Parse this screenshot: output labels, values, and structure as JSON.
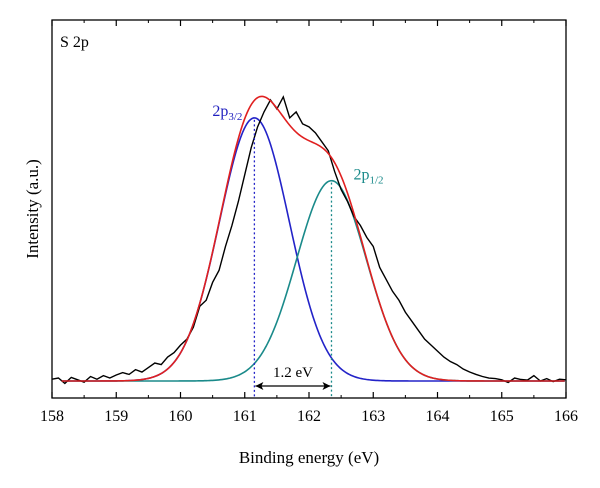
{
  "chart_data": {
    "type": "line",
    "panel_label": "S 2p",
    "xlabel": "Binding energy (eV)",
    "ylabel": "Intensity (a.u.)",
    "xlim": [
      158,
      166
    ],
    "x_ticks": [
      "158",
      "159",
      "160",
      "161",
      "162",
      "163",
      "164",
      "165",
      "166"
    ],
    "grid": false,
    "peak_labels": [
      {
        "base": "2p",
        "sub": "3/2",
        "color": "#1f1fbf"
      },
      {
        "base": "2p",
        "sub": "1/2",
        "color": "#1a8a8a"
      }
    ],
    "splitting_label": "1.2 eV",
    "peaks": [
      {
        "name": "2p3/2",
        "center": 161.15,
        "amplitude": 0.88,
        "fwhm": 1.28,
        "color": "#2323c8"
      },
      {
        "name": "2p1/2",
        "center": 162.35,
        "amplitude": 0.67,
        "fwhm": 1.28,
        "color": "#1a8a8a"
      }
    ],
    "envelope_color": "#e02020",
    "raw_color": "#000000",
    "raw_data": [
      [
        158.0,
        0.006
      ],
      [
        158.1,
        0.01
      ],
      [
        158.2,
        -0.008
      ],
      [
        158.3,
        0.012
      ],
      [
        158.4,
        0.004
      ],
      [
        158.5,
        -0.004
      ],
      [
        158.6,
        0.015
      ],
      [
        158.7,
        0.006
      ],
      [
        158.8,
        0.018
      ],
      [
        158.9,
        0.01
      ],
      [
        159.0,
        0.02
      ],
      [
        159.1,
        0.028
      ],
      [
        159.2,
        0.022
      ],
      [
        159.3,
        0.038
      ],
      [
        159.4,
        0.03
      ],
      [
        159.5,
        0.045
      ],
      [
        159.6,
        0.06
      ],
      [
        159.7,
        0.055
      ],
      [
        159.8,
        0.08
      ],
      [
        159.9,
        0.095
      ],
      [
        160.0,
        0.12
      ],
      [
        160.1,
        0.14
      ],
      [
        160.2,
        0.18
      ],
      [
        160.3,
        0.25
      ],
      [
        160.4,
        0.27
      ],
      [
        160.5,
        0.33
      ],
      [
        160.6,
        0.37
      ],
      [
        160.7,
        0.45
      ],
      [
        160.8,
        0.52
      ],
      [
        160.9,
        0.6
      ],
      [
        161.0,
        0.69
      ],
      [
        161.1,
        0.78
      ],
      [
        161.2,
        0.85
      ],
      [
        161.3,
        0.9
      ],
      [
        161.4,
        0.94
      ],
      [
        161.5,
        0.91
      ],
      [
        161.6,
        0.95
      ],
      [
        161.7,
        0.88
      ],
      [
        161.8,
        0.9
      ],
      [
        161.9,
        0.86
      ],
      [
        162.0,
        0.85
      ],
      [
        162.1,
        0.83
      ],
      [
        162.2,
        0.8
      ],
      [
        162.3,
        0.77
      ],
      [
        162.4,
        0.7
      ],
      [
        162.5,
        0.64
      ],
      [
        162.6,
        0.6
      ],
      [
        162.7,
        0.55
      ],
      [
        162.8,
        0.52
      ],
      [
        162.9,
        0.48
      ],
      [
        163.0,
        0.45
      ],
      [
        163.1,
        0.38
      ],
      [
        163.2,
        0.34
      ],
      [
        163.3,
        0.3
      ],
      [
        163.4,
        0.27
      ],
      [
        163.5,
        0.23
      ],
      [
        163.6,
        0.2
      ],
      [
        163.7,
        0.17
      ],
      [
        163.8,
        0.14
      ],
      [
        163.9,
        0.12
      ],
      [
        164.0,
        0.1
      ],
      [
        164.1,
        0.08
      ],
      [
        164.2,
        0.065
      ],
      [
        164.3,
        0.055
      ],
      [
        164.4,
        0.04
      ],
      [
        164.5,
        0.03
      ],
      [
        164.6,
        0.022
      ],
      [
        164.7,
        0.015
      ],
      [
        164.8,
        0.01
      ],
      [
        164.9,
        0.008
      ],
      [
        165.0,
        0.004
      ],
      [
        165.1,
        -0.005
      ],
      [
        165.2,
        0.01
      ],
      [
        165.3,
        0.005
      ],
      [
        165.4,
        0.003
      ],
      [
        165.5,
        0.018
      ],
      [
        165.6,
        0.0
      ],
      [
        165.7,
        0.008
      ],
      [
        165.8,
        -0.002
      ],
      [
        165.9,
        0.006
      ],
      [
        166.0,
        0.004
      ]
    ]
  }
}
